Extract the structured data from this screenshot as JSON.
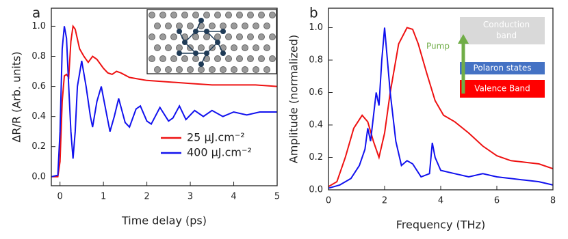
{
  "chart_data": [
    {
      "type": "line",
      "panel_label": "a",
      "x_label": "Time delay (ps)",
      "y_label": "ΔR/R (Arb. units)",
      "xlim": [
        -0.2,
        5
      ],
      "ylim": [
        -0.06,
        1.12
      ],
      "xticks": [
        0,
        1,
        2,
        3,
        4,
        5
      ],
      "yticks": [
        {
          "value": 0,
          "label": "0.0"
        },
        0.2,
        0.4,
        0.6,
        0.8,
        {
          "value": 1,
          "label": "1.0"
        }
      ],
      "legend": "bottom-right",
      "series": [
        {
          "name": "25 μJ.cm⁻²",
          "color": "#ee1111",
          "x": [
            -0.2,
            -0.05,
            0.0,
            0.05,
            0.1,
            0.15,
            0.2,
            0.25,
            0.3,
            0.35,
            0.45,
            0.55,
            0.65,
            0.75,
            0.85,
            1.0,
            1.1,
            1.2,
            1.3,
            1.4,
            1.6,
            1.8,
            2.0,
            2.5,
            3.0,
            3.5,
            4.0,
            4.5,
            5.0
          ],
          "values": [
            0.0,
            0.0,
            0.1,
            0.5,
            0.67,
            0.68,
            0.66,
            0.9,
            1.0,
            0.98,
            0.85,
            0.8,
            0.76,
            0.8,
            0.78,
            0.72,
            0.69,
            0.68,
            0.7,
            0.69,
            0.66,
            0.65,
            0.64,
            0.63,
            0.62,
            0.61,
            0.61,
            0.61,
            0.6
          ]
        },
        {
          "name": "400 μJ.cm⁻²",
          "color": "#1111ee",
          "x": [
            -0.2,
            -0.05,
            0.0,
            0.05,
            0.1,
            0.15,
            0.2,
            0.25,
            0.3,
            0.35,
            0.4,
            0.5,
            0.6,
            0.7,
            0.75,
            0.85,
            0.95,
            1.05,
            1.15,
            1.25,
            1.35,
            1.5,
            1.6,
            1.75,
            1.85,
            2.0,
            2.1,
            2.3,
            2.5,
            2.6,
            2.75,
            2.9,
            3.1,
            3.3,
            3.5,
            3.75,
            4.0,
            4.3,
            4.6,
            5.0
          ],
          "values": [
            0.0,
            0.01,
            0.3,
            0.85,
            1.0,
            0.92,
            0.6,
            0.3,
            0.12,
            0.3,
            0.6,
            0.77,
            0.6,
            0.4,
            0.33,
            0.5,
            0.6,
            0.45,
            0.3,
            0.4,
            0.52,
            0.36,
            0.33,
            0.45,
            0.47,
            0.37,
            0.35,
            0.46,
            0.37,
            0.39,
            0.47,
            0.38,
            0.44,
            0.4,
            0.44,
            0.4,
            0.43,
            0.41,
            0.43,
            0.43
          ]
        }
      ]
    },
    {
      "type": "line",
      "panel_label": "b",
      "x_label": "Frequency (THz)",
      "y_label": "Amplitude (normalized)",
      "xlim": [
        0,
        8
      ],
      "ylim": [
        0,
        1.12
      ],
      "xticks": [
        0,
        2,
        4,
        6,
        8
      ],
      "yticks": [
        {
          "value": 0,
          "label": "0.0"
        },
        0.2,
        0.4,
        0.6,
        0.8,
        {
          "value": 1,
          "label": "1.0"
        }
      ],
      "annotations": [
        "Conduction band",
        "Polaron states",
        "Valence Band",
        "Pump"
      ],
      "series": [
        {
          "color": "#ee1111",
          "x": [
            0,
            0.3,
            0.6,
            0.9,
            1.2,
            1.4,
            1.6,
            1.8,
            2.0,
            2.2,
            2.5,
            2.8,
            3.0,
            3.2,
            3.5,
            3.8,
            4.1,
            4.5,
            5.0,
            5.5,
            6.0,
            6.5,
            7.0,
            7.5,
            8.0
          ],
          "values": [
            0.02,
            0.05,
            0.2,
            0.38,
            0.46,
            0.42,
            0.3,
            0.2,
            0.35,
            0.6,
            0.9,
            1.0,
            0.99,
            0.9,
            0.72,
            0.55,
            0.46,
            0.42,
            0.35,
            0.27,
            0.21,
            0.18,
            0.17,
            0.16,
            0.13
          ]
        },
        {
          "color": "#1111ee",
          "x": [
            0,
            0.4,
            0.8,
            1.1,
            1.3,
            1.4,
            1.5,
            1.6,
            1.7,
            1.8,
            1.9,
            2.0,
            2.1,
            2.2,
            2.4,
            2.6,
            2.8,
            3.0,
            3.3,
            3.6,
            3.7,
            3.8,
            4.0,
            4.5,
            5.0,
            5.5,
            6.0,
            6.5,
            7.0,
            7.5,
            8.0
          ],
          "values": [
            0.01,
            0.03,
            0.07,
            0.15,
            0.25,
            0.38,
            0.3,
            0.45,
            0.6,
            0.52,
            0.8,
            1.0,
            0.8,
            0.6,
            0.3,
            0.15,
            0.18,
            0.16,
            0.08,
            0.1,
            0.29,
            0.2,
            0.12,
            0.1,
            0.08,
            0.1,
            0.08,
            0.07,
            0.06,
            0.05,
            0.03
          ]
        }
      ]
    }
  ]
}
